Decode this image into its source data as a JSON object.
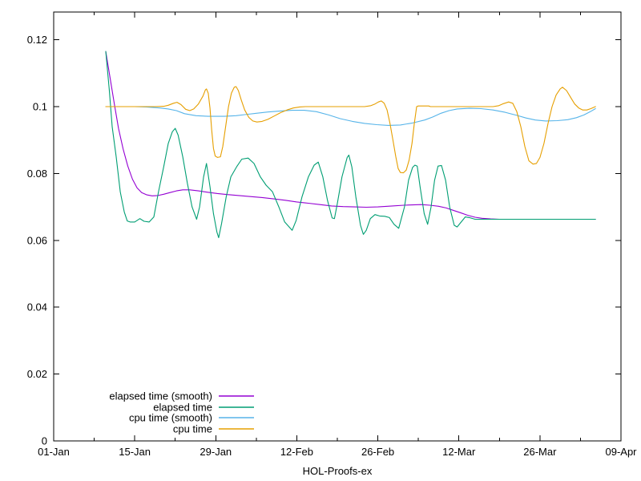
{
  "figure": {
    "xlabel": "HOL-Proofs-ex",
    "background": "#ffffff",
    "border_color": "#000000",
    "text_color": "#000000"
  },
  "axes": {
    "x": {
      "ticks": [
        {
          "day": 0,
          "label": "01-Jan"
        },
        {
          "day": 14,
          "label": "15-Jan"
        },
        {
          "day": 28,
          "label": "29-Jan"
        },
        {
          "day": 42,
          "label": "12-Feb"
        },
        {
          "day": 56,
          "label": "26-Feb"
        },
        {
          "day": 70,
          "label": "12-Mar"
        },
        {
          "day": 84,
          "label": "26-Mar"
        },
        {
          "day": 98,
          "label": "09-Apr"
        }
      ],
      "minor_tick_days": [
        7,
        21,
        35,
        49,
        63,
        77,
        91
      ]
    },
    "y": {
      "ticks": [
        {
          "value": 0,
          "label": "0"
        },
        {
          "value": 0.02,
          "label": "0.02"
        },
        {
          "value": 0.04,
          "label": "0.04"
        },
        {
          "value": 0.06,
          "label": "0.06"
        },
        {
          "value": 0.08,
          "label": "0.08"
        },
        {
          "value": 0.1,
          "label": "0.1"
        },
        {
          "value": 0.12,
          "label": "0.12"
        }
      ]
    }
  },
  "legend": {
    "entries": [
      {
        "label": "elapsed time (smooth)",
        "color": "#9400d3"
      },
      {
        "label": "elapsed time",
        "color": "#009e73"
      },
      {
        "label": "cpu time (smooth)",
        "color": "#56b4e9"
      },
      {
        "label": "cpu time",
        "color": "#e69f00"
      }
    ]
  },
  "chart_data": {
    "type": "line",
    "title": "",
    "xlabel": "HOL-Proofs-ex",
    "ylabel": "",
    "x_unit": "days since 01-Jan (x tick labels are dates)",
    "xlim": [
      0,
      98
    ],
    "ylim": [
      0,
      0.1283
    ],
    "grid": false,
    "legend_position": "inside bottom-left",
    "series": [
      {
        "name": "elapsed time (smooth)",
        "color": "#9400d3",
        "points": [
          [
            9,
            0.1165
          ],
          [
            9.8,
            0.108
          ],
          [
            10.5,
            0.1005
          ],
          [
            11.2,
            0.0935
          ],
          [
            12,
            0.0873
          ],
          [
            12.8,
            0.0822
          ],
          [
            13.6,
            0.0783
          ],
          [
            14.4,
            0.0757
          ],
          [
            15.2,
            0.0743
          ],
          [
            16.1,
            0.0736
          ],
          [
            17,
            0.0733
          ],
          [
            18,
            0.0734
          ],
          [
            19,
            0.0738
          ],
          [
            20.1,
            0.0743
          ],
          [
            21.2,
            0.0748
          ],
          [
            22.3,
            0.0751
          ],
          [
            23.5,
            0.0751
          ],
          [
            25,
            0.0748
          ],
          [
            26.6,
            0.0744
          ],
          [
            28.3,
            0.074
          ],
          [
            30,
            0.0737
          ],
          [
            32,
            0.0734
          ],
          [
            34,
            0.0731
          ],
          [
            36,
            0.0728
          ],
          [
            38,
            0.0724
          ],
          [
            40,
            0.072
          ],
          [
            42,
            0.0715
          ],
          [
            44,
            0.0711
          ],
          [
            46,
            0.0707
          ],
          [
            48,
            0.0703
          ],
          [
            50,
            0.0701
          ],
          [
            52,
            0.07
          ],
          [
            54,
            0.0699
          ],
          [
            56,
            0.07
          ],
          [
            58.5,
            0.0703
          ],
          [
            60.5,
            0.0705
          ],
          [
            62,
            0.0706
          ],
          [
            63.5,
            0.0707
          ],
          [
            65,
            0.0705
          ],
          [
            66.5,
            0.0702
          ],
          [
            67.8,
            0.0697
          ],
          [
            69,
            0.069
          ],
          [
            70.2,
            0.0683
          ],
          [
            71.5,
            0.0675
          ],
          [
            72.8,
            0.0669
          ],
          [
            74,
            0.0666
          ],
          [
            75.5,
            0.0664
          ],
          [
            77,
            0.0663
          ],
          [
            85,
            0.0663
          ],
          [
            93.6,
            0.0663
          ]
        ]
      },
      {
        "name": "elapsed time",
        "color": "#009e73",
        "points": [
          [
            9,
            0.1165
          ],
          [
            9.6,
            0.105
          ],
          [
            10.1,
            0.094
          ],
          [
            10.8,
            0.085
          ],
          [
            11.5,
            0.0745
          ],
          [
            12.2,
            0.0685
          ],
          [
            12.7,
            0.0658
          ],
          [
            13.2,
            0.0655
          ],
          [
            14,
            0.0655
          ],
          [
            14.9,
            0.0665
          ],
          [
            15.6,
            0.0657
          ],
          [
            16.5,
            0.0655
          ],
          [
            17.3,
            0.067
          ],
          [
            18.1,
            0.0745
          ],
          [
            19,
            0.082
          ],
          [
            19.8,
            0.089
          ],
          [
            20.5,
            0.0925
          ],
          [
            21,
            0.0935
          ],
          [
            21.5,
            0.0915
          ],
          [
            22.3,
            0.085
          ],
          [
            23.1,
            0.077
          ],
          [
            23.9,
            0.07
          ],
          [
            24.7,
            0.0663
          ],
          [
            25.2,
            0.07
          ],
          [
            25.9,
            0.079
          ],
          [
            26.4,
            0.083
          ],
          [
            27,
            0.076
          ],
          [
            27.6,
            0.068
          ],
          [
            28.2,
            0.0625
          ],
          [
            28.5,
            0.0608
          ],
          [
            29,
            0.065
          ],
          [
            29.8,
            0.073
          ],
          [
            30.6,
            0.079
          ],
          [
            31.6,
            0.082
          ],
          [
            32.5,
            0.0843
          ],
          [
            33.6,
            0.0846
          ],
          [
            34.6,
            0.083
          ],
          [
            35.7,
            0.079
          ],
          [
            36.7,
            0.0765
          ],
          [
            37.8,
            0.0745
          ],
          [
            38.9,
            0.07
          ],
          [
            39.9,
            0.0655
          ],
          [
            41.2,
            0.063
          ],
          [
            41.9,
            0.066
          ],
          [
            42.9,
            0.073
          ],
          [
            44,
            0.079
          ],
          [
            45,
            0.0825
          ],
          [
            45.7,
            0.0834
          ],
          [
            46.5,
            0.079
          ],
          [
            47.3,
            0.072
          ],
          [
            48.1,
            0.0667
          ],
          [
            48.5,
            0.0665
          ],
          [
            49,
            0.071
          ],
          [
            49.8,
            0.079
          ],
          [
            50.7,
            0.0848
          ],
          [
            51,
            0.0855
          ],
          [
            51.5,
            0.082
          ],
          [
            52.2,
            0.073
          ],
          [
            53,
            0.0645
          ],
          [
            53.5,
            0.0618
          ],
          [
            54,
            0.063
          ],
          [
            54.7,
            0.0665
          ],
          [
            55.5,
            0.0677
          ],
          [
            56.3,
            0.0673
          ],
          [
            57.2,
            0.0672
          ],
          [
            58,
            0.0668
          ],
          [
            58.8,
            0.0648
          ],
          [
            59.6,
            0.0636
          ],
          [
            60.6,
            0.07
          ],
          [
            61.3,
            0.078
          ],
          [
            62,
            0.0818
          ],
          [
            62.4,
            0.0825
          ],
          [
            62.8,
            0.0822
          ],
          [
            63.3,
            0.076
          ],
          [
            64,
            0.068
          ],
          [
            64.6,
            0.0648
          ],
          [
            65.2,
            0.07
          ],
          [
            65.8,
            0.078
          ],
          [
            66.4,
            0.0822
          ],
          [
            67,
            0.0824
          ],
          [
            67.7,
            0.078
          ],
          [
            68.4,
            0.07
          ],
          [
            69.2,
            0.0645
          ],
          [
            69.7,
            0.064
          ],
          [
            70.4,
            0.0655
          ],
          [
            71.1,
            0.067
          ],
          [
            71.8,
            0.0668
          ],
          [
            72.8,
            0.0663
          ],
          [
            75,
            0.0663
          ],
          [
            80,
            0.0663
          ],
          [
            85,
            0.0663
          ],
          [
            90,
            0.0663
          ],
          [
            93.6,
            0.0663
          ]
        ]
      },
      {
        "name": "cpu time (smooth)",
        "color": "#56b4e9",
        "points": [
          [
            9,
            0.1
          ],
          [
            14,
            0.1
          ],
          [
            16,
            0.0999
          ],
          [
            18.4,
            0.0996
          ],
          [
            19.8,
            0.0993
          ],
          [
            21.2,
            0.0988
          ],
          [
            22.6,
            0.0979
          ],
          [
            24.6,
            0.0973
          ],
          [
            26.7,
            0.0971
          ],
          [
            29.5,
            0.0971
          ],
          [
            31.5,
            0.0973
          ],
          [
            33,
            0.0976
          ],
          [
            35,
            0.098
          ],
          [
            37,
            0.0984
          ],
          [
            39.2,
            0.0987
          ],
          [
            41.2,
            0.0989
          ],
          [
            43.3,
            0.0989
          ],
          [
            45.4,
            0.0985
          ],
          [
            47.5,
            0.0975
          ],
          [
            49.5,
            0.0964
          ],
          [
            51.6,
            0.0956
          ],
          [
            53.7,
            0.095
          ],
          [
            55.8,
            0.0946
          ],
          [
            57.8,
            0.0944
          ],
          [
            59.9,
            0.0945
          ],
          [
            62,
            0.0951
          ],
          [
            64.1,
            0.096
          ],
          [
            65.5,
            0.0969
          ],
          [
            66.9,
            0.098
          ],
          [
            68.3,
            0.0988
          ],
          [
            69.7,
            0.0993
          ],
          [
            71.8,
            0.0995
          ],
          [
            73.8,
            0.0994
          ],
          [
            75.9,
            0.099
          ],
          [
            78,
            0.0983
          ],
          [
            80,
            0.0974
          ],
          [
            81.6,
            0.0966
          ],
          [
            83.2,
            0.096
          ],
          [
            85,
            0.0957
          ],
          [
            87,
            0.0958
          ],
          [
            88.8,
            0.0961
          ],
          [
            90.3,
            0.0967
          ],
          [
            91.6,
            0.0975
          ],
          [
            92.7,
            0.0985
          ],
          [
            93.6,
            0.0994
          ]
        ]
      },
      {
        "name": "cpu time",
        "color": "#e69f00",
        "points": [
          [
            9,
            0.1
          ],
          [
            17.5,
            0.1
          ],
          [
            19,
            0.1001
          ],
          [
            19.8,
            0.1004
          ],
          [
            20.7,
            0.101
          ],
          [
            21.3,
            0.1013
          ],
          [
            22,
            0.1006
          ],
          [
            22.8,
            0.0992
          ],
          [
            23.5,
            0.0988
          ],
          [
            24.2,
            0.0993
          ],
          [
            25,
            0.1008
          ],
          [
            25.8,
            0.1032
          ],
          [
            26.2,
            0.105
          ],
          [
            26.4,
            0.1053
          ],
          [
            26.7,
            0.104
          ],
          [
            27,
            0.0995
          ],
          [
            27.3,
            0.093
          ],
          [
            27.6,
            0.0875
          ],
          [
            27.9,
            0.0852
          ],
          [
            28.3,
            0.0848
          ],
          [
            28.8,
            0.085
          ],
          [
            29.2,
            0.088
          ],
          [
            29.7,
            0.094
          ],
          [
            30.2,
            0.1
          ],
          [
            30.7,
            0.104
          ],
          [
            31.2,
            0.1058
          ],
          [
            31.5,
            0.106
          ],
          [
            31.9,
            0.1048
          ],
          [
            32.4,
            0.102
          ],
          [
            33,
            0.099
          ],
          [
            33.7,
            0.0968
          ],
          [
            34.4,
            0.0957
          ],
          [
            35.1,
            0.0954
          ],
          [
            36,
            0.0956
          ],
          [
            37,
            0.0962
          ],
          [
            38.1,
            0.0972
          ],
          [
            39.2,
            0.0982
          ],
          [
            40.3,
            0.099
          ],
          [
            41.4,
            0.0996
          ],
          [
            42.5,
            0.0999
          ],
          [
            43.5,
            0.1
          ],
          [
            53.7,
            0.1
          ],
          [
            54.8,
            0.1003
          ],
          [
            55.5,
            0.1008
          ],
          [
            56.1,
            0.1014
          ],
          [
            56.6,
            0.1017
          ],
          [
            57.1,
            0.101
          ],
          [
            57.6,
            0.099
          ],
          [
            58.1,
            0.095
          ],
          [
            58.6,
            0.09
          ],
          [
            59.1,
            0.085
          ],
          [
            59.5,
            0.0815
          ],
          [
            59.9,
            0.0803
          ],
          [
            60.4,
            0.0802
          ],
          [
            60.9,
            0.081
          ],
          [
            61.4,
            0.084
          ],
          [
            61.9,
            0.089
          ],
          [
            62.3,
            0.095
          ],
          [
            62.7,
            0.1
          ],
          [
            63,
            0.1002
          ],
          [
            64.8,
            0.1002
          ],
          [
            65.1,
            0.1
          ],
          [
            75.9,
            0.1
          ],
          [
            76.9,
            0.1003
          ],
          [
            77.7,
            0.1009
          ],
          [
            78.6,
            0.1014
          ],
          [
            79.3,
            0.101
          ],
          [
            80,
            0.0985
          ],
          [
            80.7,
            0.094
          ],
          [
            81.4,
            0.088
          ],
          [
            82.1,
            0.0838
          ],
          [
            82.8,
            0.0828
          ],
          [
            83.4,
            0.083
          ],
          [
            84,
            0.0848
          ],
          [
            84.7,
            0.089
          ],
          [
            85.4,
            0.095
          ],
          [
            86.1,
            0.1
          ],
          [
            86.8,
            0.1035
          ],
          [
            87.5,
            0.1053
          ],
          [
            87.9,
            0.1058
          ],
          [
            88.6,
            0.1048
          ],
          [
            89.3,
            0.1028
          ],
          [
            90,
            0.1008
          ],
          [
            90.7,
            0.0996
          ],
          [
            91.4,
            0.099
          ],
          [
            92.1,
            0.099
          ],
          [
            92.8,
            0.0994
          ],
          [
            93.6,
            0.1
          ]
        ]
      }
    ]
  }
}
